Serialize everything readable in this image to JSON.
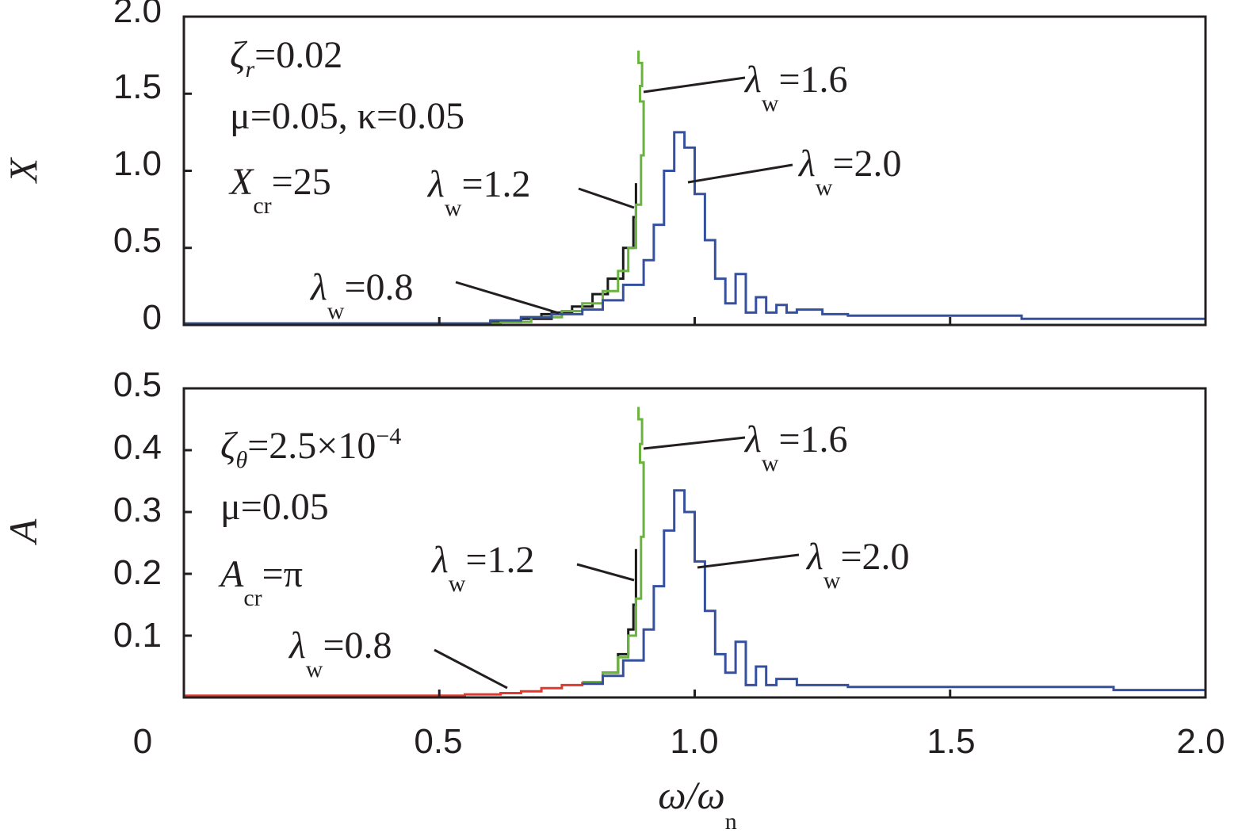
{
  "chart_data": [
    {
      "type": "line",
      "ylabel": "X",
      "xlim": [
        0,
        2.0
      ],
      "ylim": [
        0,
        2.0
      ],
      "yticks": [
        "0",
        "0.5",
        "1.0",
        "1.5",
        "2.0"
      ],
      "yticks_values": [
        0,
        0.5,
        1.0,
        1.5,
        2.0
      ],
      "x_tick_values": [
        0.5,
        1.0,
        1.5
      ],
      "params": [
        {
          "sym": "ζ",
          "sub": "r",
          "rest": "=0.02"
        },
        {
          "text": "μ=0.05, κ=0.05"
        },
        {
          "sym": "X",
          "sub": "cr",
          "rest": "=25"
        }
      ],
      "labels": [
        {
          "series": "λw=0.8",
          "text": "λ",
          "sub": "w",
          "rest": "=0.8"
        },
        {
          "series": "λw=1.2",
          "text": "λ",
          "sub": "w",
          "rest": "=1.2"
        },
        {
          "series": "λw=1.6",
          "text": "λ",
          "sub": "w",
          "rest": "=1.6"
        },
        {
          "series": "λw=2.0",
          "text": "λ",
          "sub": "w",
          "rest": "=2.0"
        }
      ],
      "series": [
        {
          "name": "λw=0.8",
          "color": "#1a1a1a",
          "points": [
            [
              0,
              0.01
            ],
            [
              0.5,
              0.01
            ],
            [
              0.6,
              0.02
            ],
            [
              0.66,
              0.05
            ],
            [
              0.7,
              0.07
            ],
            [
              0.74,
              0.08
            ]
          ]
        },
        {
          "name": "λw=1.2",
          "color": "#1a1a1a",
          "points": [
            [
              0,
              0.01
            ],
            [
              0.5,
              0.01
            ],
            [
              0.6,
              0.02
            ],
            [
              0.66,
              0.04
            ],
            [
              0.72,
              0.08
            ],
            [
              0.76,
              0.12
            ],
            [
              0.8,
              0.2
            ],
            [
              0.83,
              0.3
            ],
            [
              0.86,
              0.5
            ],
            [
              0.88,
              0.7
            ],
            [
              0.885,
              0.92
            ]
          ]
        },
        {
          "name": "λw=1.6",
          "color": "#6ab33e",
          "points": [
            [
              0,
              0.01
            ],
            [
              0.5,
              0.01
            ],
            [
              0.62,
              0.02
            ],
            [
              0.68,
              0.05
            ],
            [
              0.74,
              0.09
            ],
            [
              0.78,
              0.14
            ],
            [
              0.82,
              0.22
            ],
            [
              0.85,
              0.35
            ],
            [
              0.87,
              0.5
            ],
            [
              0.885,
              0.78
            ],
            [
              0.895,
              1.1
            ],
            [
              0.9,
              1.45
            ],
            [
              0.893,
              1.55
            ],
            [
              0.897,
              1.7
            ],
            [
              0.89,
              1.78
            ]
          ]
        },
        {
          "name": "λw=2.0",
          "color": "#35509e",
          "points": [
            [
              0,
              0.01
            ],
            [
              0.5,
              0.01
            ],
            [
              0.6,
              0.03
            ],
            [
              0.66,
              0.05
            ],
            [
              0.72,
              0.07
            ],
            [
              0.78,
              0.1
            ],
            [
              0.82,
              0.16
            ],
            [
              0.86,
              0.26
            ],
            [
              0.9,
              0.42
            ],
            [
              0.92,
              0.65
            ],
            [
              0.94,
              1.0
            ],
            [
              0.96,
              1.25
            ],
            [
              0.98,
              1.15
            ],
            [
              1.0,
              0.85
            ],
            [
              1.02,
              0.55
            ],
            [
              1.04,
              0.3
            ],
            [
              1.06,
              0.14
            ],
            [
              1.08,
              0.33
            ],
            [
              1.1,
              0.08
            ],
            [
              1.12,
              0.18
            ],
            [
              1.14,
              0.08
            ],
            [
              1.16,
              0.13
            ],
            [
              1.18,
              0.08
            ],
            [
              1.2,
              0.1
            ],
            [
              1.25,
              0.07
            ],
            [
              1.3,
              0.06
            ],
            [
              1.62,
              0.06
            ],
            [
              1.64,
              0.04
            ],
            [
              2.0,
              0.04
            ]
          ]
        }
      ]
    },
    {
      "type": "line",
      "ylabel": "A",
      "xlabel": "ω/ω",
      "xlabel_sub": "n",
      "xlim": [
        0,
        2.0
      ],
      "ylim": [
        0,
        0.5
      ],
      "yticks": [
        "0.1",
        "0.2",
        "0.3",
        "0.4",
        "0.5"
      ],
      "yticks_values": [
        0.1,
        0.2,
        0.3,
        0.4,
        0.5
      ],
      "xticks": [
        "0",
        "0.5",
        "1.0",
        "1.5",
        "2.0"
      ],
      "xticks_values": [
        0,
        0.5,
        1.0,
        1.5,
        2.0
      ],
      "params": [
        {
          "sym": "ζ",
          "sub": "θ",
          "rest": "=2.5×10",
          "sup": "−4"
        },
        {
          "text": "μ=0.05"
        },
        {
          "sym": "A",
          "sub": "cr",
          "rest": "=π"
        }
      ],
      "labels": [
        {
          "series": "λw=0.8",
          "text": "λ",
          "sub": "w",
          "rest": "=0.8"
        },
        {
          "series": "λw=1.2",
          "text": "λ",
          "sub": "w",
          "rest": "=1.2"
        },
        {
          "series": "λw=1.6",
          "text": "λ",
          "sub": "w",
          "rest": "=1.6"
        },
        {
          "series": "λw=2.0",
          "text": "λ",
          "sub": "w",
          "rest": "=2.0"
        }
      ],
      "series": [
        {
          "name": "λw=0.8",
          "color": "#e03a2e",
          "points": [
            [
              0,
              0.003
            ],
            [
              0.5,
              0.003
            ],
            [
              0.55,
              0.005
            ],
            [
              0.62,
              0.007
            ],
            [
              0.66,
              0.01
            ],
            [
              0.7,
              0.015
            ],
            [
              0.74,
              0.02
            ],
            [
              0.78,
              0.025
            ]
          ]
        },
        {
          "name": "λw=1.2",
          "color": "#1a1a1a",
          "points": [
            [
              0.78,
              0.025
            ],
            [
              0.82,
              0.04
            ],
            [
              0.85,
              0.07
            ],
            [
              0.87,
              0.11
            ],
            [
              0.88,
              0.15
            ],
            [
              0.885,
              0.24
            ]
          ]
        },
        {
          "name": "λw=1.6",
          "color": "#6ab33e",
          "points": [
            [
              0.78,
              0.025
            ],
            [
              0.82,
              0.04
            ],
            [
              0.85,
              0.065
            ],
            [
              0.87,
              0.1
            ],
            [
              0.885,
              0.16
            ],
            [
              0.895,
              0.26
            ],
            [
              0.9,
              0.38
            ],
            [
              0.893,
              0.41
            ],
            [
              0.897,
              0.45
            ],
            [
              0.89,
              0.47
            ]
          ]
        },
        {
          "name": "λw=2.0",
          "color": "#35509e",
          "points": [
            [
              0.78,
              0.022
            ],
            [
              0.82,
              0.035
            ],
            [
              0.86,
              0.06
            ],
            [
              0.9,
              0.11
            ],
            [
              0.92,
              0.18
            ],
            [
              0.94,
              0.27
            ],
            [
              0.96,
              0.335
            ],
            [
              0.98,
              0.3
            ],
            [
              1.0,
              0.22
            ],
            [
              1.02,
              0.14
            ],
            [
              1.04,
              0.07
            ],
            [
              1.06,
              0.04
            ],
            [
              1.08,
              0.09
            ],
            [
              1.1,
              0.02
            ],
            [
              1.12,
              0.05
            ],
            [
              1.14,
              0.02
            ],
            [
              1.16,
              0.03
            ],
            [
              1.2,
              0.02
            ],
            [
              1.3,
              0.017
            ],
            [
              1.8,
              0.017
            ],
            [
              1.82,
              0.012
            ],
            [
              2.0,
              0.012
            ]
          ]
        }
      ]
    }
  ]
}
